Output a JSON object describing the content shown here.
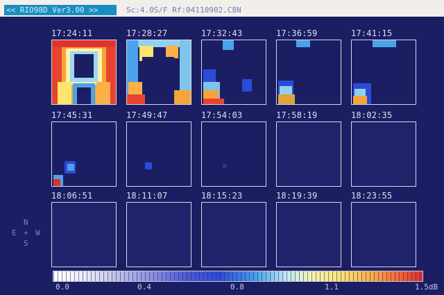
{
  "header": {
    "program_title": "<< RIO98D Ver3.00 >>",
    "info": "Sc:4.0S/F Rf:04110902.C8N"
  },
  "frames": [
    {
      "time": "17:24:11",
      "intensity": 1.0
    },
    {
      "time": "17:28:27",
      "intensity": 0.85
    },
    {
      "time": "17:32:43",
      "intensity": 0.6
    },
    {
      "time": "17:36:59",
      "intensity": 0.5
    },
    {
      "time": "17:41:15",
      "intensity": 0.42
    },
    {
      "time": "17:45:31",
      "intensity": 0.22
    },
    {
      "time": "17:49:47",
      "intensity": 0.08
    },
    {
      "time": "17:54:03",
      "intensity": 0.04
    },
    {
      "time": "17:58:19",
      "intensity": 0.0
    },
    {
      "time": "18:02:35",
      "intensity": 0.0
    },
    {
      "time": "18:06:51",
      "intensity": 0.0
    },
    {
      "time": "18:11:07",
      "intensity": 0.0
    },
    {
      "time": "18:15:23",
      "intensity": 0.0
    },
    {
      "time": "18:19:39",
      "intensity": 0.0
    },
    {
      "time": "18:23:55",
      "intensity": 0.0
    }
  ],
  "compass": {
    "north": "N",
    "east": "E",
    "west": "W",
    "south": "S",
    "center": "+"
  },
  "scale": {
    "labels": [
      "0.0",
      "0.4",
      "0.8",
      "1.1",
      "1.5dB"
    ],
    "colors": {
      "low": "#ffffff",
      "mid": "#2c4bd8",
      "high": "#e0302e",
      "background": "#1b1e63"
    }
  }
}
